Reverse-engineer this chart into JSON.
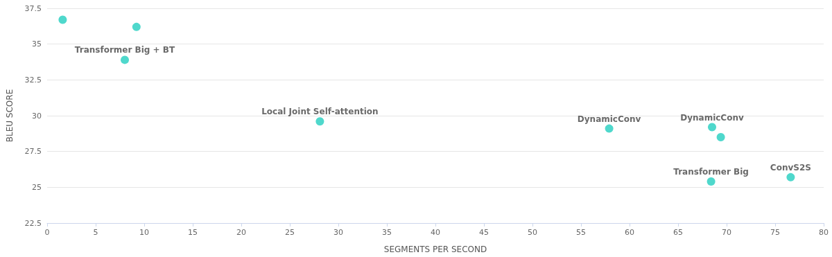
{
  "chart_data": {
    "type": "scatter",
    "xlabel": "SEGMENTS PER SECOND",
    "ylabel": "BLEU SCORE",
    "x": [
      1.6,
      9.2,
      8.0,
      28.1,
      57.9,
      68.5,
      69.4,
      68.4,
      76.6
    ],
    "series": [
      {
        "color": "#4fd8cc",
        "values": [
          36.7,
          36.2,
          33.9,
          29.6,
          29.1,
          29.2,
          28.5,
          25.4,
          25.7
        ]
      }
    ],
    "xlim": [
      0,
      80
    ],
    "xticks": [
      0,
      5,
      10,
      15,
      20,
      25,
      30,
      35,
      40,
      45,
      50,
      55,
      60,
      65,
      70,
      75,
      80
    ],
    "ylim": [
      22.5,
      37.5
    ],
    "yticks": [
      22.5,
      25,
      27.5,
      30,
      32.5,
      35,
      37.5
    ],
    "annotations": [
      {
        "text": "Transformer Big + BT",
        "x": 8.0,
        "y": 33.9
      },
      {
        "text": "Local Joint Self-attention",
        "x": 28.1,
        "y": 29.6
      },
      {
        "text": "DynamicConv",
        "x": 57.9,
        "y": 29.1
      },
      {
        "text": "DynamicConv",
        "x": 68.5,
        "y": 29.2
      },
      {
        "text": "Transformer Big",
        "x": 68.4,
        "y": 25.4
      },
      {
        "text": "ConvS2S",
        "x": 76.6,
        "y": 25.7
      }
    ],
    "grid": "y",
    "marker": "circle"
  }
}
